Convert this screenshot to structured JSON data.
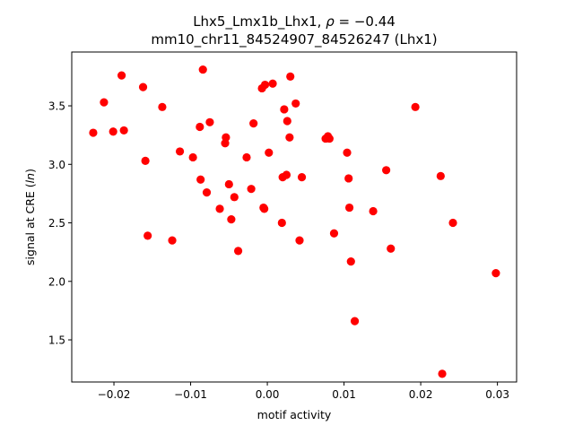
{
  "chart_data": {
    "type": "scatter",
    "title_line1_prefix": "Lhx5_Lmx1b_Lhx1, ",
    "title_rho_symbol": "ρ",
    "title_rho_value": " = −0.44",
    "title_line2": "mm10_chr11_84524907_84526247 (Lhx1)",
    "xlabel": "motif activity",
    "ylabel_prefix": "signal at CRE (",
    "ylabel_italic": "ln",
    "ylabel_suffix": ")",
    "xlim": [
      -0.0255,
      0.0325
    ],
    "ylim": [
      1.14,
      3.96
    ],
    "xticks": [
      -0.02,
      -0.01,
      0.0,
      0.01,
      0.02,
      0.03
    ],
    "xtick_labels": [
      "−0.02",
      "−0.01",
      "0.00",
      "0.01",
      "0.02",
      "0.03"
    ],
    "yticks": [
      1.5,
      2.0,
      2.5,
      3.0,
      3.5
    ],
    "ytick_labels": [
      "1.5",
      "2.0",
      "2.5",
      "3.0",
      "3.5"
    ],
    "grid": false,
    "marker_color": "#ff0000",
    "points": [
      {
        "x": -0.0227,
        "y": 3.27
      },
      {
        "x": -0.0213,
        "y": 3.53
      },
      {
        "x": -0.0201,
        "y": 3.28
      },
      {
        "x": -0.019,
        "y": 3.76
      },
      {
        "x": -0.0187,
        "y": 3.29
      },
      {
        "x": -0.0162,
        "y": 3.66
      },
      {
        "x": -0.0159,
        "y": 3.03
      },
      {
        "x": -0.0156,
        "y": 2.39
      },
      {
        "x": -0.0137,
        "y": 3.49
      },
      {
        "x": -0.0124,
        "y": 2.35
      },
      {
        "x": -0.0114,
        "y": 3.11
      },
      {
        "x": -0.0097,
        "y": 3.06
      },
      {
        "x": -0.0088,
        "y": 3.32
      },
      {
        "x": -0.0087,
        "y": 2.87
      },
      {
        "x": -0.0084,
        "y": 3.81
      },
      {
        "x": -0.0079,
        "y": 2.76
      },
      {
        "x": -0.0075,
        "y": 3.36
      },
      {
        "x": -0.0062,
        "y": 2.62
      },
      {
        "x": -0.0055,
        "y": 3.18
      },
      {
        "x": -0.0054,
        "y": 3.23
      },
      {
        "x": -0.005,
        "y": 2.83
      },
      {
        "x": -0.0047,
        "y": 2.53
      },
      {
        "x": -0.0043,
        "y": 2.72
      },
      {
        "x": -0.0038,
        "y": 2.26
      },
      {
        "x": -0.0027,
        "y": 3.06
      },
      {
        "x": -0.0021,
        "y": 2.79
      },
      {
        "x": -0.0018,
        "y": 3.35
      },
      {
        "x": -0.0007,
        "y": 3.65
      },
      {
        "x": -0.0005,
        "y": 2.63
      },
      {
        "x": -0.0004,
        "y": 2.62
      },
      {
        "x": -0.0003,
        "y": 3.68
      },
      {
        "x": 0.0002,
        "y": 3.1
      },
      {
        "x": 0.0007,
        "y": 3.69
      },
      {
        "x": 0.0019,
        "y": 2.5
      },
      {
        "x": 0.002,
        "y": 2.89
      },
      {
        "x": 0.0022,
        "y": 3.47
      },
      {
        "x": 0.0025,
        "y": 2.91
      },
      {
        "x": 0.0026,
        "y": 3.37
      },
      {
        "x": 0.0029,
        "y": 3.23
      },
      {
        "x": 0.003,
        "y": 3.75
      },
      {
        "x": 0.0037,
        "y": 3.52
      },
      {
        "x": 0.0042,
        "y": 2.35
      },
      {
        "x": 0.0045,
        "y": 2.89
      },
      {
        "x": 0.0076,
        "y": 3.22
      },
      {
        "x": 0.0079,
        "y": 3.24
      },
      {
        "x": 0.0081,
        "y": 3.22
      },
      {
        "x": 0.0087,
        "y": 2.41
      },
      {
        "x": 0.0104,
        "y": 3.1
      },
      {
        "x": 0.0106,
        "y": 2.88
      },
      {
        "x": 0.0107,
        "y": 2.63
      },
      {
        "x": 0.0109,
        "y": 2.17
      },
      {
        "x": 0.0114,
        "y": 1.66
      },
      {
        "x": 0.0138,
        "y": 2.6
      },
      {
        "x": 0.0155,
        "y": 2.95
      },
      {
        "x": 0.0161,
        "y": 2.28
      },
      {
        "x": 0.0193,
        "y": 3.49
      },
      {
        "x": 0.0226,
        "y": 2.9
      },
      {
        "x": 0.0228,
        "y": 1.21
      },
      {
        "x": 0.0242,
        "y": 2.5
      },
      {
        "x": 0.0298,
        "y": 2.07
      }
    ]
  }
}
